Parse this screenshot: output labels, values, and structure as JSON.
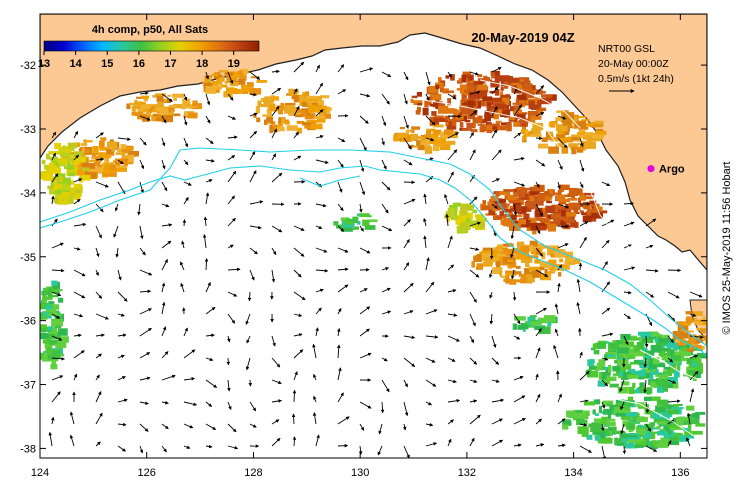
{
  "map": {
    "title": "20-May-2019 04Z",
    "colorbar": {
      "title": "4h comp, p50, All Sats",
      "ticks": [
        "13",
        "14",
        "15",
        "16",
        "17",
        "18",
        "19"
      ],
      "range": [
        13,
        19.8
      ],
      "colors": [
        "#000080",
        "#0000d0",
        "#0060ff",
        "#00b8ff",
        "#28c8a0",
        "#40c040",
        "#9ad020",
        "#e8d000",
        "#f0a000",
        "#e07010",
        "#c04010",
        "#902000"
      ]
    },
    "current_legend": {
      "line1": "NRT00 GSL",
      "line2": "20-May 00:00Z",
      "line3": "0.5m/s (1kt 24h)"
    },
    "argo": {
      "label": "Argo",
      "lon": 135.45,
      "lat": -33.62,
      "color": "#e000e0"
    },
    "credit": "© IMOS 25-May-2019 11:56 Hobart",
    "x_axis": {
      "min": 124,
      "max": 136.5,
      "ticks": [
        "124",
        "126",
        "128",
        "130",
        "132",
        "134",
        "136"
      ]
    },
    "y_axis": {
      "min": -38.15,
      "max": -31.2,
      "ticks": [
        "-32",
        "-33",
        "-34",
        "-35",
        "-36",
        "-37",
        "-38"
      ]
    },
    "colors": {
      "land": "#fcc894",
      "coast": "#202020",
      "bathymetry": "#20d0e8"
    }
  }
}
